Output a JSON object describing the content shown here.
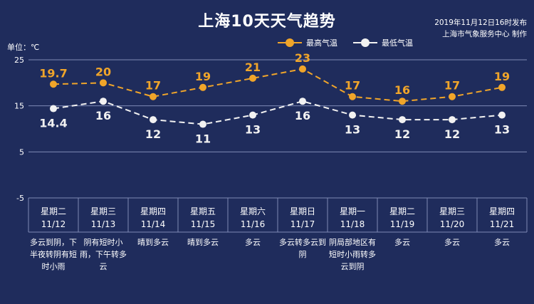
{
  "header": {
    "title": "上海10天天气趋势",
    "published": "2019年11月12日16时发布",
    "publisher": "上海市气象服务中心 制作",
    "unit": "单位：℃"
  },
  "legend": {
    "high": "最高气温",
    "low": "最低气温"
  },
  "colors": {
    "background": "#1f2c5c",
    "high": "#f0a52a",
    "low": "#f2f2f2",
    "grid": "#7f8ab5"
  },
  "days": [
    {
      "weekday": "星期二",
      "date": "11/12",
      "weather": "多云到阴，下半夜转阴有短时小雨"
    },
    {
      "weekday": "星期三",
      "date": "11/13",
      "weather": "阴有短时小雨，下午转多云"
    },
    {
      "weekday": "星期四",
      "date": "11/14",
      "weather": "晴到多云"
    },
    {
      "weekday": "星期五",
      "date": "11/15",
      "weather": "晴到多云"
    },
    {
      "weekday": "星期六",
      "date": "11/16",
      "weather": "多云"
    },
    {
      "weekday": "星期日",
      "date": "11/17",
      "weather": "多云转多云到阴"
    },
    {
      "weekday": "星期一",
      "date": "11/18",
      "weather": "阴局部地区有短时小雨转多云到阴"
    },
    {
      "weekday": "星期二",
      "date": "11/19",
      "weather": "多云"
    },
    {
      "weekday": "星期三",
      "date": "11/20",
      "weather": "多云"
    },
    {
      "weekday": "星期四",
      "date": "11/21",
      "weather": "多云"
    }
  ],
  "chart_data": {
    "type": "line",
    "title": "上海10天天气趋势",
    "ylabel": "单位：℃",
    "ylim": [
      -5,
      25
    ],
    "yticks": [
      25,
      15,
      5,
      -5
    ],
    "grid": true,
    "legend_position": "top",
    "categories": [
      "11/12",
      "11/13",
      "11/14",
      "11/15",
      "11/16",
      "11/17",
      "11/18",
      "11/19",
      "11/20",
      "11/21"
    ],
    "series": [
      {
        "name": "最高气温",
        "values": [
          19.7,
          20,
          17,
          19,
          21,
          23,
          17,
          16,
          17,
          19
        ]
      },
      {
        "name": "最低气温",
        "values": [
          14.4,
          16,
          12,
          11,
          13,
          16,
          13,
          12,
          12,
          13
        ]
      }
    ]
  }
}
